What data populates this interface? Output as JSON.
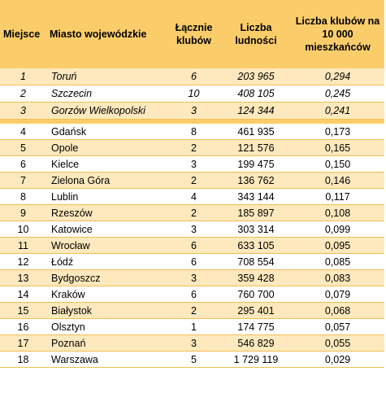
{
  "table": {
    "headers": {
      "place": "Miejsce",
      "city": "Miasto wojewódzkie",
      "clubs": "Łącznie klubów",
      "population": "Liczba ludności",
      "ratio": "Liczba klubów na 10 000 mieszkańców"
    },
    "podium": [
      {
        "place": "1",
        "city": "Toruń",
        "clubs": "6",
        "population": "203 965",
        "ratio": "0,294"
      },
      {
        "place": "2",
        "city": "Szczecin",
        "clubs": "10",
        "population": "408 105",
        "ratio": "0,245"
      },
      {
        "place": "3",
        "city": "Gorzów Wielkopolski",
        "clubs": "3",
        "population": "124 344",
        "ratio": "0,241"
      }
    ],
    "rows": [
      {
        "place": "4",
        "city": "Gdańsk",
        "clubs": "8",
        "population": "461 935",
        "ratio": "0,173"
      },
      {
        "place": "5",
        "city": "Opole",
        "clubs": "2",
        "population": "121 576",
        "ratio": "0,165"
      },
      {
        "place": "6",
        "city": "Kielce",
        "clubs": "3",
        "population": "199 475",
        "ratio": "0,150"
      },
      {
        "place": "7",
        "city": "Zielona Góra",
        "clubs": "2",
        "population": "136 762",
        "ratio": "0,146"
      },
      {
        "place": "8",
        "city": "Lublin",
        "clubs": "4",
        "population": "343 144",
        "ratio": "0,117"
      },
      {
        "place": "9",
        "city": "Rzeszów",
        "clubs": "2",
        "population": "185 897",
        "ratio": "0,108"
      },
      {
        "place": "10",
        "city": "Katowice",
        "clubs": "3",
        "population": "303 314",
        "ratio": "0,099"
      },
      {
        "place": "11",
        "city": "Wrocław",
        "clubs": "6",
        "population": "633 105",
        "ratio": "0,095"
      },
      {
        "place": "12",
        "city": "Łódź",
        "clubs": "6",
        "population": "708 554",
        "ratio": "0,085"
      },
      {
        "place": "13",
        "city": "Bydgoszcz",
        "clubs": "3",
        "population": "359 428",
        "ratio": "0,083"
      },
      {
        "place": "14",
        "city": "Kraków",
        "clubs": "6",
        "population": "760 700",
        "ratio": "0,079"
      },
      {
        "place": "15",
        "city": "Białystok",
        "clubs": "2",
        "population": "295 401",
        "ratio": "0,068"
      },
      {
        "place": "16",
        "city": "Olsztyn",
        "clubs": "1",
        "population": "174 775",
        "ratio": "0,057"
      },
      {
        "place": "17",
        "city": "Poznań",
        "clubs": "3",
        "population": "546 829",
        "ratio": "0,055"
      },
      {
        "place": "18",
        "city": "Warszawa",
        "clubs": "5",
        "population": "1 729 119",
        "ratio": "0,029"
      }
    ]
  }
}
